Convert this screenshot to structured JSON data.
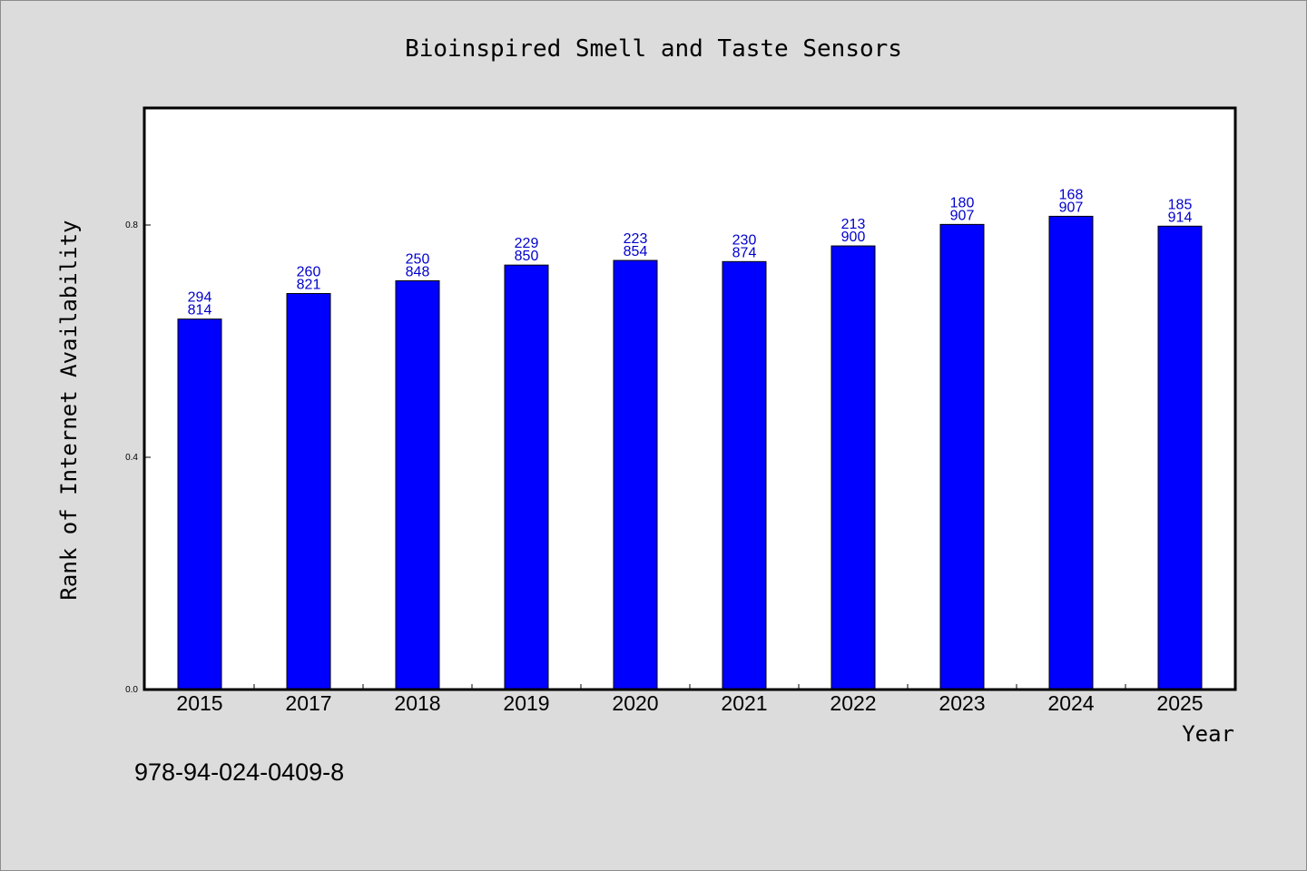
{
  "chart_data": {
    "type": "bar",
    "title": "Bioinspired Smell and Taste Sensors",
    "xlabel": "Year",
    "ylabel": "Rank of Internet Availability",
    "categories": [
      "2015",
      "2017",
      "2018",
      "2019",
      "2020",
      "2021",
      "2022",
      "2023",
      "2024",
      "2025"
    ],
    "values": [
      0.638,
      0.682,
      0.704,
      0.731,
      0.739,
      0.737,
      0.764,
      0.801,
      0.815,
      0.798
    ],
    "label_top": [
      "294",
      "260",
      "250",
      "229",
      "223",
      "230",
      "213",
      "180",
      "168",
      "185"
    ],
    "label_bottom": [
      "814",
      "821",
      "848",
      "850",
      "854",
      "874",
      "900",
      "907",
      "907",
      "914"
    ],
    "ylim": [
      0,
      1.0
    ],
    "yticks": [
      "0.0",
      "0.4",
      "0.8"
    ],
    "bar_color": "#0000ff",
    "label_color": "#0000cc",
    "grid": false
  },
  "footer": {
    "isbn": "978-94-024-0409-8"
  }
}
